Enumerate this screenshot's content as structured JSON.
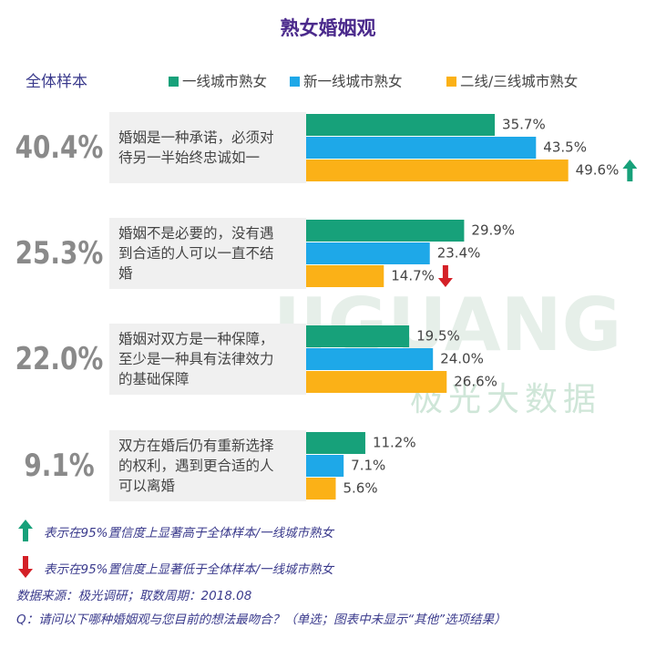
{
  "chart_data": {
    "type": "bar",
    "orientation": "horizontal",
    "title": "熟女婚姻观",
    "overall_label": "全体样本",
    "overall_values": [
      40.4,
      25.3,
      22.0,
      9.1
    ],
    "overall_value_labels": [
      "40.4%",
      "25.3%",
      "22.0%",
      "9.1%"
    ],
    "categories": [
      "婚姻是一种承诺，必须对待另一半始终忠诚如一",
      "婚姻不是必要的，没有遇到合适的人可以一直不结婚",
      "婚姻对双方是一种保障，至少是一种具有法律效力的基础保障",
      "双方在婚后仍有重新选择的权利，遇到更合适的人可以离婚"
    ],
    "series": [
      {
        "name": "一线城市熟女",
        "color": "#17a17a",
        "values": [
          35.7,
          29.9,
          19.5,
          11.2
        ],
        "value_labels": [
          "35.7%",
          "29.9%",
          "19.5%",
          "11.2%"
        ]
      },
      {
        "name": "新一线城市熟女",
        "color": "#1ea8e8",
        "values": [
          43.5,
          23.4,
          24.0,
          7.1
        ],
        "value_labels": [
          "43.5%",
          "23.4%",
          "24.0%",
          "7.1%"
        ]
      },
      {
        "name": "二线/三线城市熟女",
        "color": "#fbb117",
        "values": [
          49.6,
          14.7,
          26.6,
          5.6
        ],
        "value_labels": [
          "49.6%",
          "14.7%",
          "26.6%",
          "5.6%"
        ],
        "significance": [
          "up",
          "down",
          null,
          null
        ]
      }
    ],
    "watermark": {
      "text": "JIGUANG",
      "subtext": "极光大数据"
    },
    "notes": [
      {
        "icon": "up",
        "text": "表示在95%置信度上显著高于全体样本/一线城市熟女"
      },
      {
        "icon": "down",
        "text": "表示在95%置信度上显著低于全体样本/一线城市熟女"
      }
    ],
    "source": "数据来源：极光调研；取数周期：2018.08",
    "question": "Q：请问以下哪种婚姻观与您目前的想法最吻合？（单选；图表中未显示“其他”选项结果）"
  }
}
